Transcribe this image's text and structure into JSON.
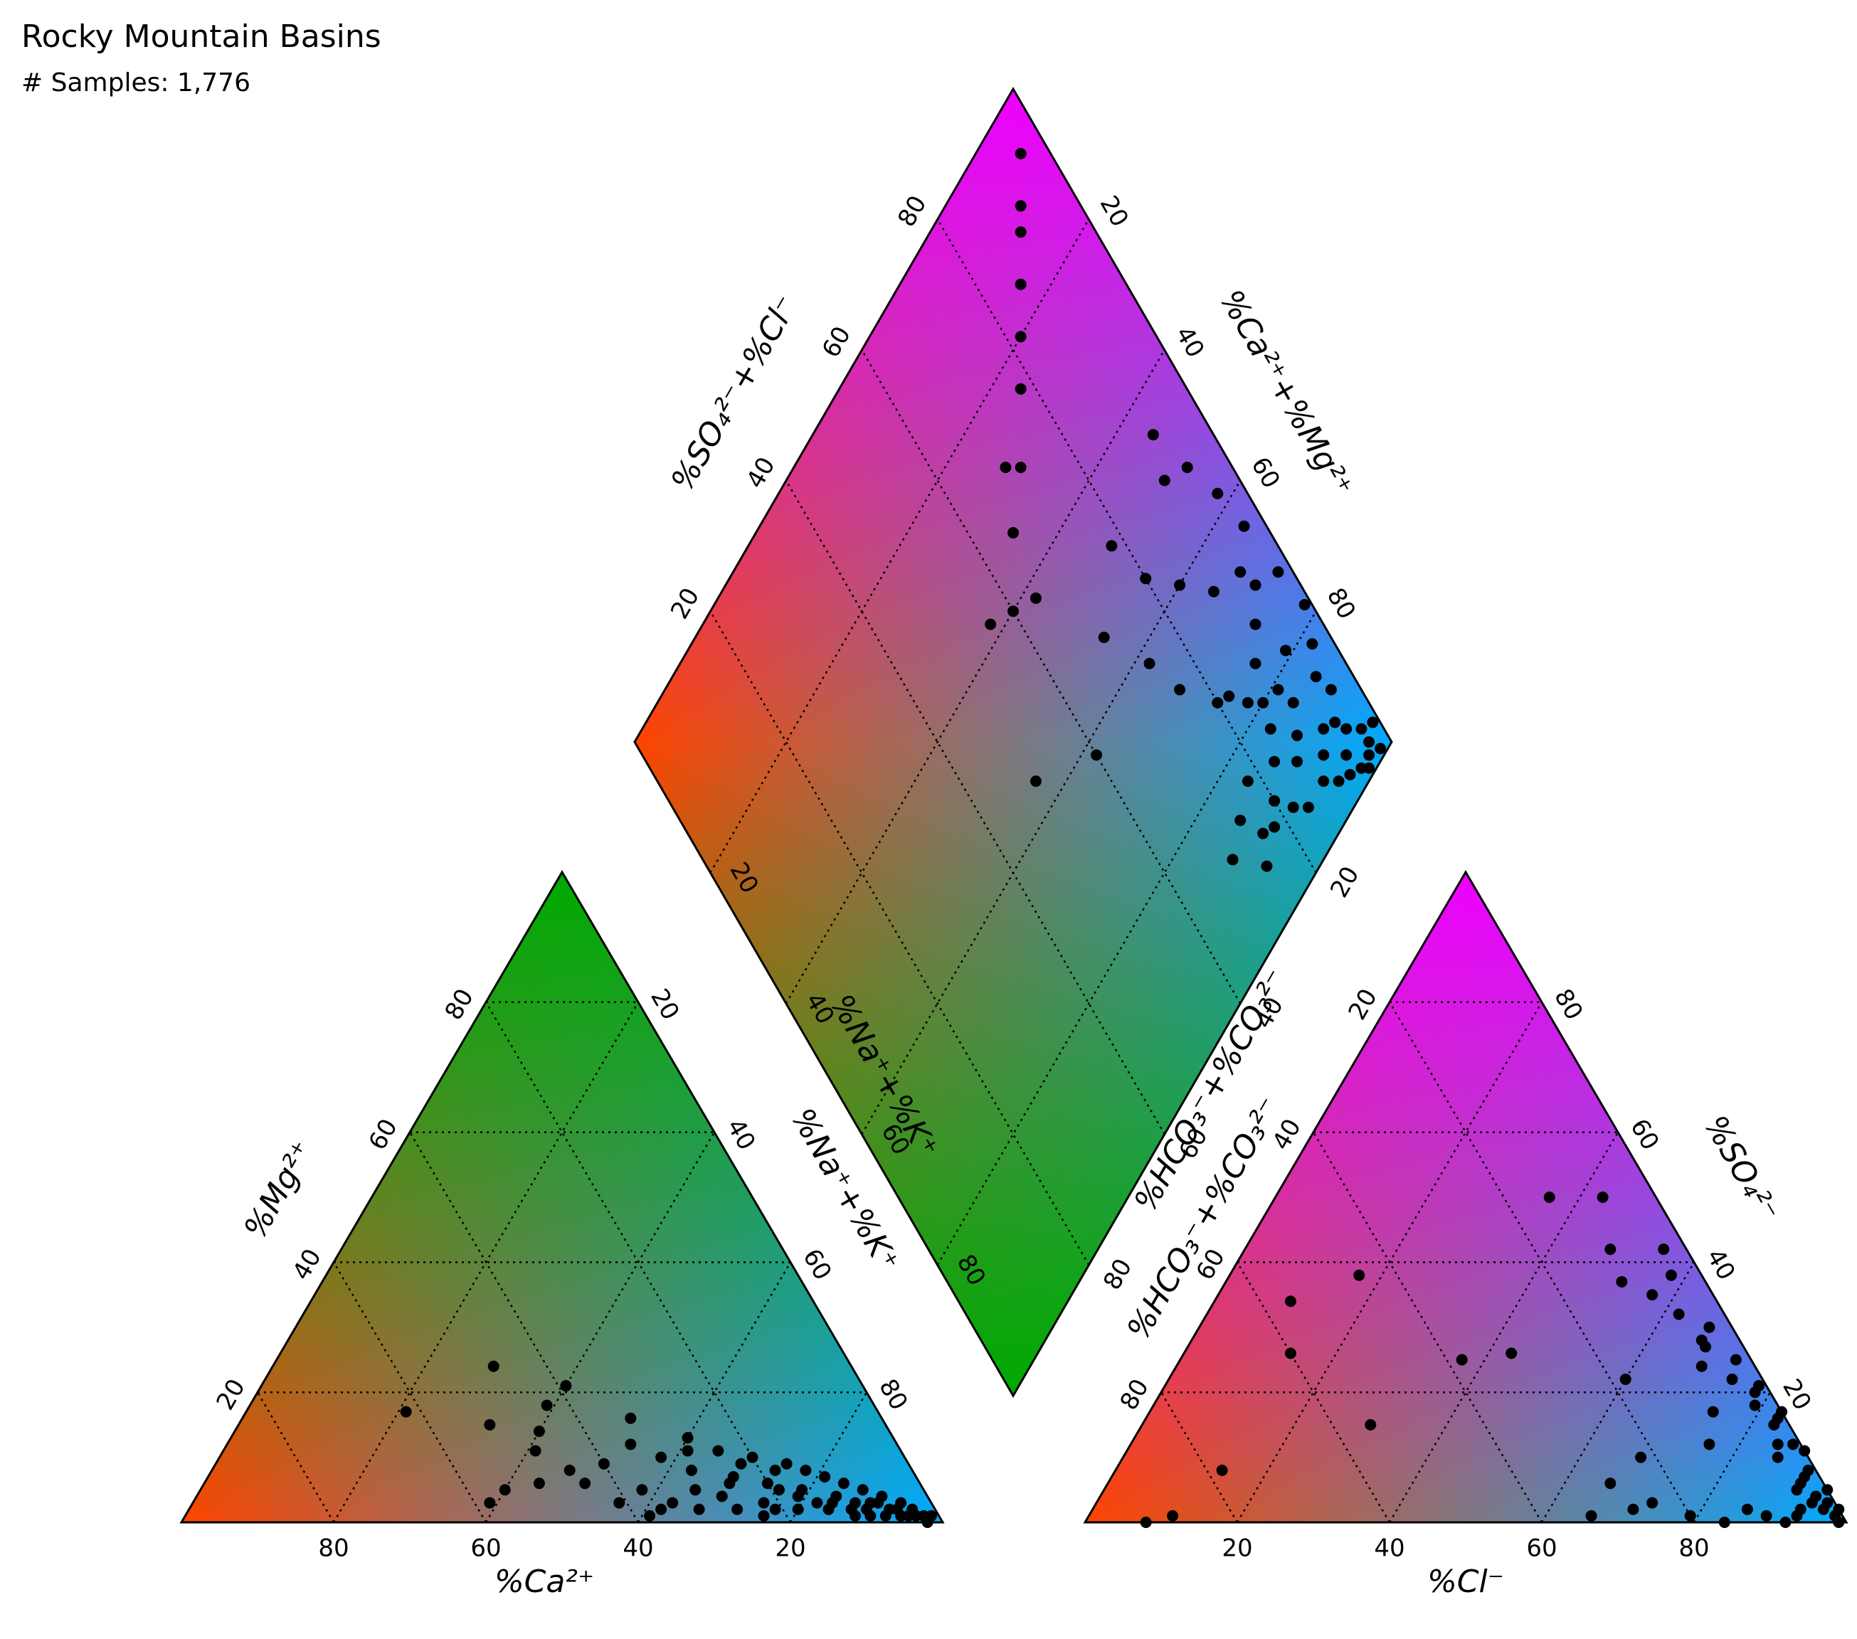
{
  "header": {
    "title": "Rocky Mountain Basins",
    "subtitle": "# Samples: 1,776"
  },
  "colors": {
    "na_k_corner": "#00aaff",
    "ca_corner": "#ff4400",
    "mg_corner": "#00aa00",
    "cl_corner": "#00aaff",
    "hco3_corner": "#ff4400",
    "so4_corner": "#ee00ff",
    "points": "#000000",
    "outline": "#000000",
    "grid": "#000000"
  },
  "chart_data": {
    "type": "scatter",
    "title": "Rocky Mountain Basins",
    "subtitle": "# Samples: 1,776",
    "diagram": "piper",
    "grid": true,
    "grid_style": "dotted",
    "tick_values": [
      20,
      40,
      60,
      80
    ],
    "cation_triangle": {
      "xlabel": "%Ca²⁺",
      "left_label": "%Mg²⁺",
      "right_label": "%Na⁺+%K⁺",
      "components": [
        "Ca",
        "Mg",
        "NaK"
      ],
      "points": [
        [
          38,
          1,
          61
        ],
        [
          36,
          2,
          62
        ],
        [
          58,
          3,
          39
        ],
        [
          52,
          15,
          33
        ],
        [
          47,
          24,
          29
        ],
        [
          62,
          17,
          21
        ],
        [
          43,
          18,
          39
        ],
        [
          33,
          16,
          51
        ],
        [
          28,
          11,
          61
        ],
        [
          24,
          7,
          69
        ],
        [
          20,
          6,
          74
        ],
        [
          16,
          5,
          79
        ],
        [
          12,
          4,
          84
        ],
        [
          10,
          3,
          87
        ],
        [
          8,
          3,
          89
        ],
        [
          6,
          2,
          92
        ],
        [
          5,
          2,
          93
        ],
        [
          4,
          1,
          95
        ],
        [
          3,
          1,
          96
        ],
        [
          2,
          1,
          97
        ],
        [
          30,
          5,
          65
        ],
        [
          27,
          4,
          69
        ],
        [
          22,
          3,
          75
        ],
        [
          18,
          2,
          80
        ],
        [
          14,
          2,
          84
        ],
        [
          11,
          1,
          88
        ],
        [
          9,
          1,
          90
        ],
        [
          7,
          1,
          92
        ],
        [
          17,
          4,
          79
        ],
        [
          19,
          5,
          76
        ],
        [
          25,
          6,
          69
        ],
        [
          29,
          8,
          63
        ],
        [
          32,
          10,
          58
        ],
        [
          35,
          12,
          53
        ],
        [
          40,
          9,
          51
        ],
        [
          45,
          8,
          47
        ],
        [
          50,
          6,
          44
        ],
        [
          55,
          5,
          40
        ],
        [
          48,
          11,
          41
        ],
        [
          44,
          6,
          50
        ],
        [
          41,
          3,
          56
        ],
        [
          37,
          5,
          58
        ],
        [
          34,
          3,
          63
        ],
        [
          31,
          2,
          67
        ],
        [
          26,
          2,
          72
        ],
        [
          23,
          1,
          76
        ],
        [
          21,
          2,
          77
        ],
        [
          15,
          3,
          82
        ],
        [
          13,
          3,
          84
        ],
        [
          11,
          2,
          87
        ],
        [
          9,
          2,
          89
        ],
        [
          7,
          3,
          90
        ],
        [
          5,
          1,
          94
        ],
        [
          3,
          2,
          95
        ],
        [
          2,
          0,
          98
        ],
        [
          1,
          1,
          98
        ],
        [
          4,
          3,
          93
        ],
        [
          6,
          4,
          90
        ],
        [
          8,
          5,
          87
        ],
        [
          10,
          6,
          84
        ],
        [
          12,
          7,
          81
        ],
        [
          14,
          8,
          78
        ],
        [
          16,
          9,
          75
        ],
        [
          18,
          8,
          74
        ],
        [
          20,
          10,
          70
        ],
        [
          22,
          9,
          69
        ],
        [
          24,
          11,
          65
        ],
        [
          27,
          13,
          60
        ],
        [
          39,
          21,
          40
        ],
        [
          46,
          14,
          40
        ]
      ]
    },
    "anion_triangle": {
      "xlabel": "%Cl⁻",
      "left_label": "%HCO₃⁻+%CO₃²⁻",
      "right_label": "%SO₄²⁻",
      "components": [
        "HCO3",
        "SO4",
        "Cl"
      ],
      "points": [
        [
          92,
          0,
          8
        ],
        [
          88,
          1,
          11
        ],
        [
          78,
          8,
          14
        ],
        [
          45,
          38,
          17
        ],
        [
          56,
          34,
          10
        ],
        [
          60,
          26,
          14
        ],
        [
          55,
          15,
          30
        ],
        [
          38,
          25,
          37
        ],
        [
          31,
          26,
          43
        ],
        [
          14,
          50,
          36
        ],
        [
          18,
          22,
          60
        ],
        [
          10,
          42,
          48
        ],
        [
          7,
          50,
          43
        ],
        [
          4,
          38,
          58
        ],
        [
          5,
          28,
          67
        ],
        [
          4,
          10,
          86
        ],
        [
          3,
          6,
          91
        ],
        [
          2,
          4,
          94
        ],
        [
          2,
          2,
          96
        ],
        [
          1,
          1,
          98
        ],
        [
          1,
          0,
          99
        ],
        [
          0,
          2,
          98
        ],
        [
          1,
          3,
          96
        ],
        [
          2,
          7,
          91
        ],
        [
          3,
          12,
          85
        ],
        [
          2,
          15,
          83
        ],
        [
          3,
          18,
          79
        ],
        [
          4,
          22,
          74
        ],
        [
          5,
          27,
          68
        ],
        [
          6,
          32,
          62
        ],
        [
          3,
          30,
          67
        ],
        [
          2,
          25,
          73
        ],
        [
          2,
          20,
          78
        ],
        [
          1,
          16,
          83
        ],
        [
          1,
          12,
          87
        ],
        [
          1,
          8,
          91
        ],
        [
          0,
          5,
          95
        ],
        [
          0,
          11,
          89
        ],
        [
          0,
          17,
          83
        ],
        [
          1,
          21,
          78
        ],
        [
          3,
          3,
          94
        ],
        [
          4,
          5,
          91
        ],
        [
          5,
          2,
          93
        ],
        [
          6,
          1,
          93
        ],
        [
          8,
          0,
          92
        ],
        [
          10,
          1,
          89
        ],
        [
          12,
          2,
          86
        ],
        [
          16,
          0,
          84
        ],
        [
          20,
          1,
          79
        ],
        [
          24,
          3,
          73
        ],
        [
          27,
          2,
          71
        ],
        [
          33,
          1,
          66
        ],
        [
          28,
          6,
          66
        ],
        [
          22,
          10,
          68
        ],
        [
          12,
          12,
          76
        ],
        [
          9,
          17,
          74
        ],
        [
          7,
          24,
          69
        ],
        [
          8,
          35,
          57
        ],
        [
          11,
          37,
          52
        ],
        [
          3,
          42,
          55
        ]
      ]
    },
    "diamond": {
      "left_upper_label": "%SO₄²⁻+%Cl⁻",
      "right_upper_label": "%Ca²⁺+%Mg²⁺",
      "left_lower_label": "%Na⁺+%K⁺",
      "right_lower_label": "%HCO₃⁻+%CO₃²⁻",
      "coords": [
        "SO4_plus_Cl",
        "Ca_plus_Mg"
      ],
      "points": [
        [
          90,
          8
        ],
        [
          80,
          18
        ],
        [
          58,
          36
        ],
        [
          52,
          22
        ],
        [
          30,
          6
        ],
        [
          28,
          2
        ],
        [
          22,
          1
        ],
        [
          18,
          3
        ],
        [
          15,
          5
        ],
        [
          12,
          4
        ],
        [
          10,
          8
        ],
        [
          8,
          10
        ],
        [
          6,
          12
        ],
        [
          5,
          3
        ],
        [
          4,
          1
        ],
        [
          3,
          8
        ],
        [
          2,
          4
        ],
        [
          1,
          2
        ],
        [
          16,
          10
        ],
        [
          20,
          14
        ],
        [
          25,
          18
        ],
        [
          35,
          12
        ],
        [
          40,
          16
        ],
        [
          45,
          20
        ],
        [
          60,
          40
        ],
        [
          70,
          28
        ],
        [
          76,
          22
        ],
        [
          84,
          14
        ],
        [
          88,
          10
        ],
        [
          94,
          4
        ],
        [
          50,
          10
        ],
        [
          55,
          8
        ],
        [
          48,
          6
        ],
        [
          42,
          4
        ],
        [
          36,
          3
        ],
        [
          33,
          7
        ],
        [
          27,
          9
        ],
        [
          24,
          12
        ],
        [
          21,
          7
        ],
        [
          19,
          11
        ],
        [
          17,
          15
        ],
        [
          14,
          17
        ],
        [
          11,
          20
        ],
        [
          9,
          22
        ],
        [
          7,
          26
        ],
        [
          13,
          12
        ],
        [
          11,
          14
        ],
        [
          9,
          6
        ],
        [
          7,
          5
        ],
        [
          5,
          7
        ],
        [
          3,
          3
        ],
        [
          2,
          6
        ],
        [
          1,
          5
        ],
        [
          4,
          10
        ],
        [
          6,
          16
        ],
        [
          8,
          18
        ],
        [
          10,
          24
        ],
        [
          12,
          30
        ],
        [
          14,
          26
        ],
        [
          16,
          22
        ],
        [
          66,
          34
        ],
        [
          72,
          30
        ],
        [
          62,
          44
        ],
        [
          46,
          30
        ],
        [
          38,
          26
        ],
        [
          32,
          24
        ],
        [
          26,
          20
        ],
        [
          22,
          16
        ],
        [
          38,
          40
        ],
        [
          44,
          50
        ]
      ]
    }
  }
}
